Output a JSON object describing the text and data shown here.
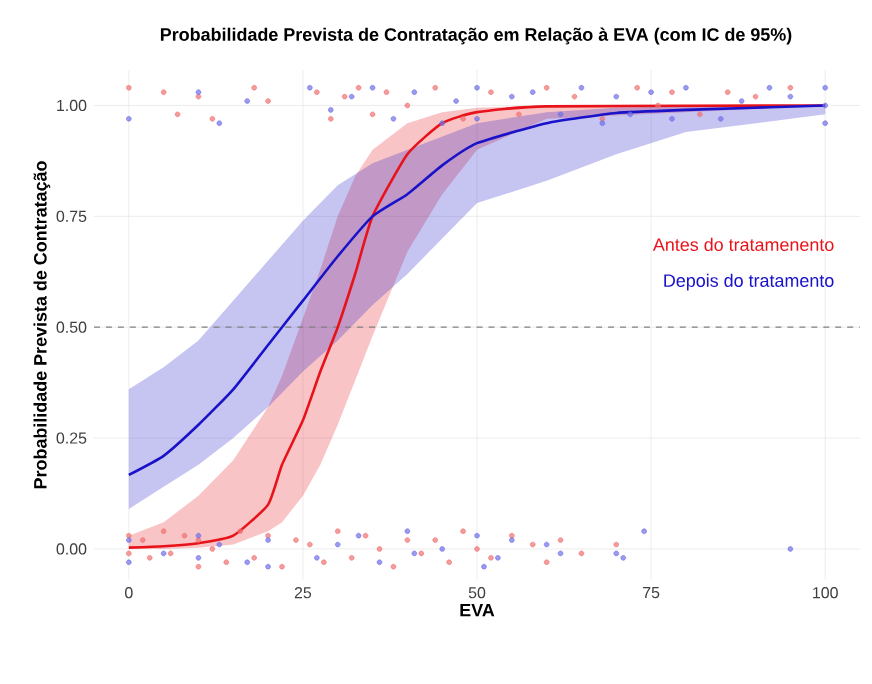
{
  "chart_data": {
    "type": "line",
    "title": "Probabilidade Prevista de Contratação em Relação à EVA (com IC de 95%)",
    "xlabel": "EVA",
    "ylabel": "Probabilidade Prevista de Contratação",
    "xlim": [
      -5,
      105
    ],
    "ylim": [
      -0.07,
      1.08
    ],
    "xticks": [
      0,
      25,
      50,
      75,
      100
    ],
    "yticks": [
      {
        "value": 0,
        "label": "0.00"
      },
      {
        "value": 0.25,
        "label": "0.25"
      },
      {
        "value": 0.5,
        "label": "0.50"
      },
      {
        "value": 0.75,
        "label": "0.75"
      },
      {
        "value": 1,
        "label": "1.00"
      }
    ],
    "grid": true,
    "legend": "right",
    "ref_lines": [
      {
        "axis": "y",
        "value": 0.5,
        "color": "#808080",
        "line_style": "dashed"
      }
    ],
    "series": [
      {
        "type": "scatter",
        "marker": "circle",
        "color": "#f07272",
        "x": [
          0,
          5,
          7,
          10,
          12,
          18,
          20,
          27,
          29,
          31,
          33,
          35,
          37,
          40,
          44,
          48,
          52,
          56,
          60,
          64,
          68,
          73,
          76,
          78,
          82,
          86,
          90,
          95,
          0,
          0,
          2,
          3,
          5,
          6,
          8,
          10,
          10,
          12,
          14,
          16,
          18,
          20,
          22,
          24,
          26,
          28,
          30,
          32,
          34,
          36,
          38,
          40,
          42,
          44,
          46,
          48,
          50,
          52,
          55,
          58,
          60,
          62,
          65,
          70
        ],
        "values": [
          1.04,
          1.03,
          0.98,
          1.02,
          0.97,
          1.04,
          1.01,
          1.03,
          0.97,
          1.02,
          1.04,
          0.98,
          1.03,
          1.0,
          1.04,
          0.97,
          1.03,
          0.98,
          1.04,
          1.02,
          0.97,
          1.04,
          1.0,
          1.03,
          0.98,
          1.03,
          1.02,
          1.04,
          0.03,
          -0.01,
          0.02,
          -0.02,
          0.04,
          -0.01,
          0.03,
          -0.04,
          0.02,
          0.0,
          -0.03,
          0.04,
          -0.02,
          0.03,
          -0.04,
          0.02,
          0.01,
          -0.03,
          0.04,
          -0.02,
          0.03,
          0.0,
          -0.04,
          0.02,
          -0.01,
          0.02,
          -0.03,
          0.04,
          0.0,
          -0.02,
          0.03,
          0.01,
          -0.03,
          0.02,
          -0.01,
          0.01
        ]
      },
      {
        "type": "scatter",
        "marker": "circle",
        "color": "#6f6fe8",
        "x": [
          0,
          10,
          13,
          17,
          26,
          29,
          32,
          35,
          38,
          41,
          45,
          47,
          50,
          50,
          55,
          58,
          62,
          65,
          68,
          70,
          72,
          75,
          78,
          80,
          85,
          88,
          92,
          95,
          100,
          100,
          100,
          0,
          0,
          5,
          10,
          10,
          13,
          17,
          20,
          20,
          27,
          30,
          33,
          36,
          40,
          41,
          45,
          50,
          51,
          53,
          55,
          60,
          62,
          70,
          71,
          74,
          95
        ],
        "values": [
          0.97,
          1.03,
          0.96,
          1.01,
          1.04,
          0.99,
          1.02,
          1.04,
          0.97,
          1.03,
          0.96,
          1.01,
          1.04,
          0.97,
          1.02,
          1.03,
          0.98,
          1.04,
          0.96,
          1.02,
          0.98,
          1.03,
          0.97,
          1.04,
          0.97,
          1.01,
          1.04,
          1.02,
          1.04,
          1.0,
          0.96,
          0.02,
          -0.03,
          -0.01,
          0.03,
          -0.02,
          0.01,
          -0.03,
          0.02,
          -0.04,
          -0.02,
          0.01,
          0.03,
          -0.03,
          0.04,
          -0.01,
          0.0,
          0.03,
          -0.04,
          -0.02,
          0.02,
          0.01,
          -0.01,
          -0.01,
          -0.02,
          0.04,
          0.0
        ]
      },
      {
        "name": "Antes do tratamenento",
        "marker": "none",
        "color": "#e8131a",
        "x": [
          0,
          5,
          10,
          15,
          20,
          22,
          25,
          27.5,
          30,
          32.5,
          35,
          40,
          45,
          50,
          60,
          100
        ],
        "values": [
          0.003,
          0.006,
          0.013,
          0.03,
          0.1,
          0.19,
          0.29,
          0.4,
          0.5,
          0.62,
          0.75,
          0.89,
          0.96,
          0.985,
          0.998,
          1.0
        ],
        "lower": [
          0.0,
          0.0,
          0.003,
          0.01,
          0.04,
          0.06,
          0.12,
          0.19,
          0.28,
          0.38,
          0.48,
          0.67,
          0.8,
          0.9,
          0.97,
          1.0
        ],
        "upper": [
          0.03,
          0.06,
          0.12,
          0.2,
          0.32,
          0.39,
          0.52,
          0.63,
          0.75,
          0.84,
          0.9,
          0.96,
          0.985,
          0.995,
          1.0,
          1.0
        ]
      },
      {
        "name": "Depois do tratamento",
        "marker": "none",
        "color": "#1a12c8",
        "x": [
          0,
          5,
          10,
          15,
          20,
          25,
          30,
          35,
          40,
          45,
          50,
          60,
          70,
          80,
          100
        ],
        "values": [
          0.167,
          0.21,
          0.28,
          0.36,
          0.46,
          0.56,
          0.66,
          0.75,
          0.8,
          0.865,
          0.915,
          0.96,
          0.983,
          0.99,
          1.0
        ],
        "lower": [
          0.09,
          0.14,
          0.19,
          0.25,
          0.32,
          0.4,
          0.47,
          0.55,
          0.62,
          0.7,
          0.78,
          0.83,
          0.89,
          0.94,
          0.98
        ],
        "upper": [
          0.36,
          0.41,
          0.47,
          0.56,
          0.65,
          0.74,
          0.82,
          0.87,
          0.9,
          0.93,
          0.96,
          0.985,
          0.995,
          0.998,
          1.0
        ]
      }
    ]
  }
}
